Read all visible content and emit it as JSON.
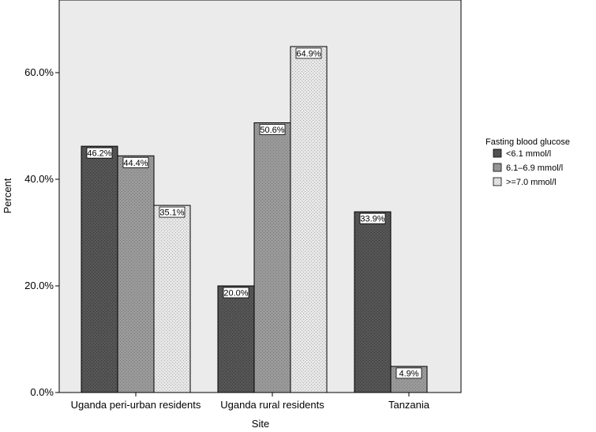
{
  "chart_data": {
    "type": "bar",
    "title": "",
    "xlabel": "Site",
    "ylabel": "Percent",
    "categories": [
      "Uganda peri-urban residents",
      "Uganda rural residents",
      "Tanzania"
    ],
    "series": [
      {
        "name": "<6.1 mmol/l",
        "values": [
          46.2,
          20.0,
          33.9
        ],
        "labels": [
          "46.2%",
          "20.0%",
          "33.9%"
        ],
        "color": "#555555"
      },
      {
        "name": "6.1–6.9 mmol/l",
        "values": [
          44.4,
          50.6,
          4.9
        ],
        "labels": [
          "44.4%",
          "50.6%",
          "4.9%"
        ],
        "color": "#9a9a9a"
      },
      {
        "name": ">=7.0 mmol/l",
        "values": [
          35.1,
          64.9,
          null
        ],
        "labels": [
          "35.1%",
          "64.9%",
          null
        ],
        "color": "#e6e6e6"
      }
    ],
    "yticks": [
      0,
      20,
      40,
      60
    ],
    "ytick_labels": [
      "0.0%",
      "20.0%",
      "40.0%",
      "60.0%"
    ],
    "ylim": [
      0,
      72.5
    ],
    "legend": {
      "title": "Fasting blood glucose",
      "placement": "right"
    },
    "background": "#ebebeb"
  }
}
